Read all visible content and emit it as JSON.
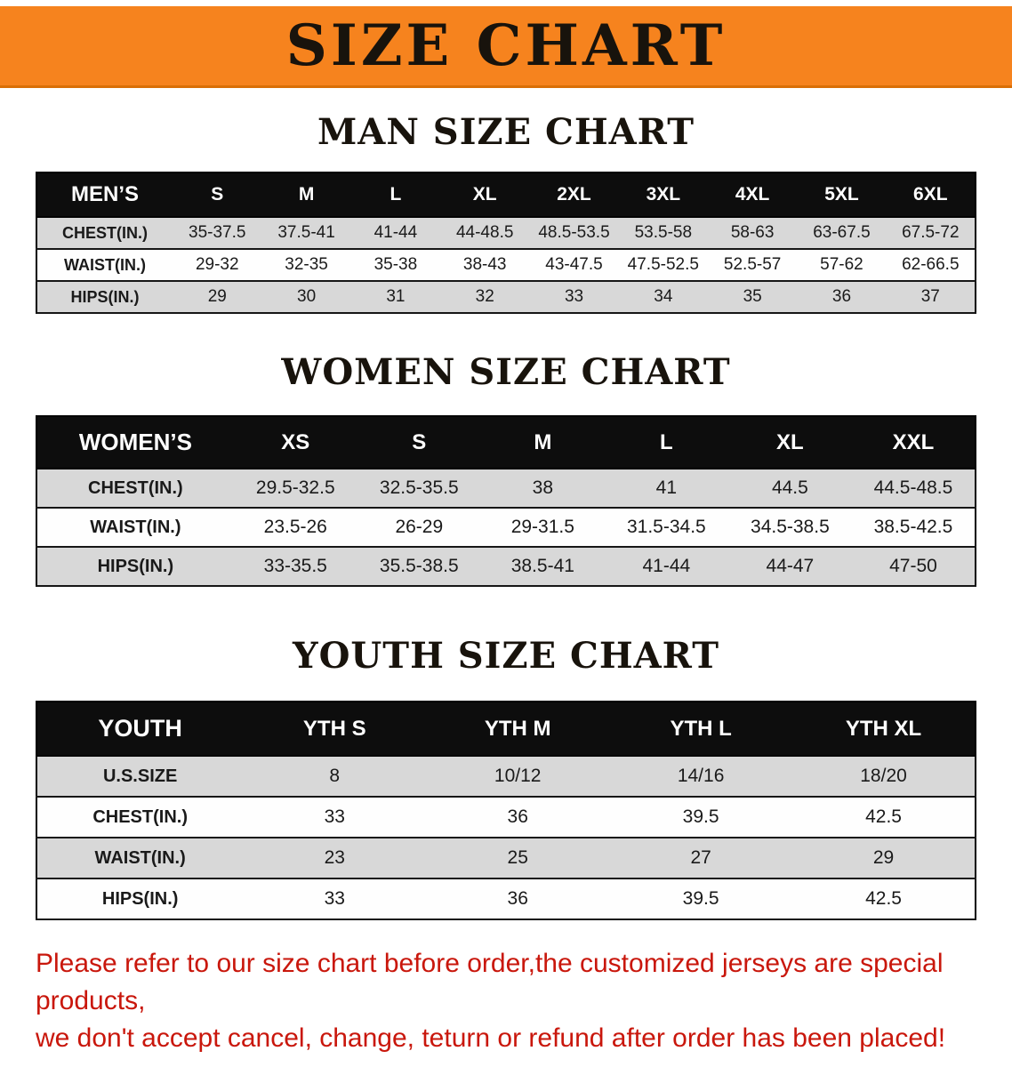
{
  "banner": {
    "title": "SIZE CHART",
    "background_color": "#f6831e",
    "title_color": "#18130c"
  },
  "colors": {
    "table_header_bg": "#0d0d0d",
    "table_header_text": "#ffffff",
    "row_stripe_gray": "#d8d8d8",
    "disclaimer_red": "#c9170c"
  },
  "sections": [
    {
      "id": "men",
      "heading": "MAN SIZE CHART",
      "table": {
        "header": [
          "MEN’S",
          "S",
          "M",
          "L",
          "XL",
          "2XL",
          "3XL",
          "4XL",
          "5XL",
          "6XL"
        ],
        "rows": [
          [
            "CHEST(IN.)",
            "35-37.5",
            "37.5-41",
            "41-44",
            "44-48.5",
            "48.5-53.5",
            "53.5-58",
            "58-63",
            "63-67.5",
            "67.5-72"
          ],
          [
            "WAIST(IN.)",
            "29-32",
            "32-35",
            "35-38",
            "38-43",
            "43-47.5",
            "47.5-52.5",
            "52.5-57",
            "57-62",
            "62-66.5"
          ],
          [
            "HIPS(IN.)",
            "29",
            "30",
            "31",
            "32",
            "33",
            "34",
            "35",
            "36",
            "37"
          ]
        ]
      }
    },
    {
      "id": "women",
      "heading": "WOMEN SIZE CHART",
      "table": {
        "header": [
          "WOMEN’S",
          "XS",
          "S",
          "M",
          "L",
          "XL",
          "XXL"
        ],
        "rows": [
          [
            "CHEST(IN.)",
            "29.5-32.5",
            "32.5-35.5",
            "38",
            "41",
            "44.5",
            "44.5-48.5"
          ],
          [
            "WAIST(IN.)",
            "23.5-26",
            "26-29",
            "29-31.5",
            "31.5-34.5",
            "34.5-38.5",
            "38.5-42.5"
          ],
          [
            "HIPS(IN.)",
            "33-35.5",
            "35.5-38.5",
            "38.5-41",
            "41-44",
            "44-47",
            "47-50"
          ]
        ]
      }
    },
    {
      "id": "youth",
      "heading": "YOUTH SIZE CHART",
      "table": {
        "header": [
          "YOUTH",
          "YTH S",
          "YTH M",
          "YTH L",
          "YTH XL"
        ],
        "rows": [
          [
            "U.S.SIZE",
            "8",
            "10/12",
            "14/16",
            "18/20"
          ],
          [
            "CHEST(IN.)",
            "33",
            "36",
            "39.5",
            "42.5"
          ],
          [
            "WAIST(IN.)",
            "23",
            "25",
            "27",
            "29"
          ],
          [
            "HIPS(IN.)",
            "33",
            "36",
            "39.5",
            "42.5"
          ]
        ]
      }
    }
  ],
  "footer": {
    "line1": "Please refer to our size chart before order,the customized jerseys are special products,",
    "line2": "we don't accept cancel, change, teturn or refund after order has been placed!"
  }
}
